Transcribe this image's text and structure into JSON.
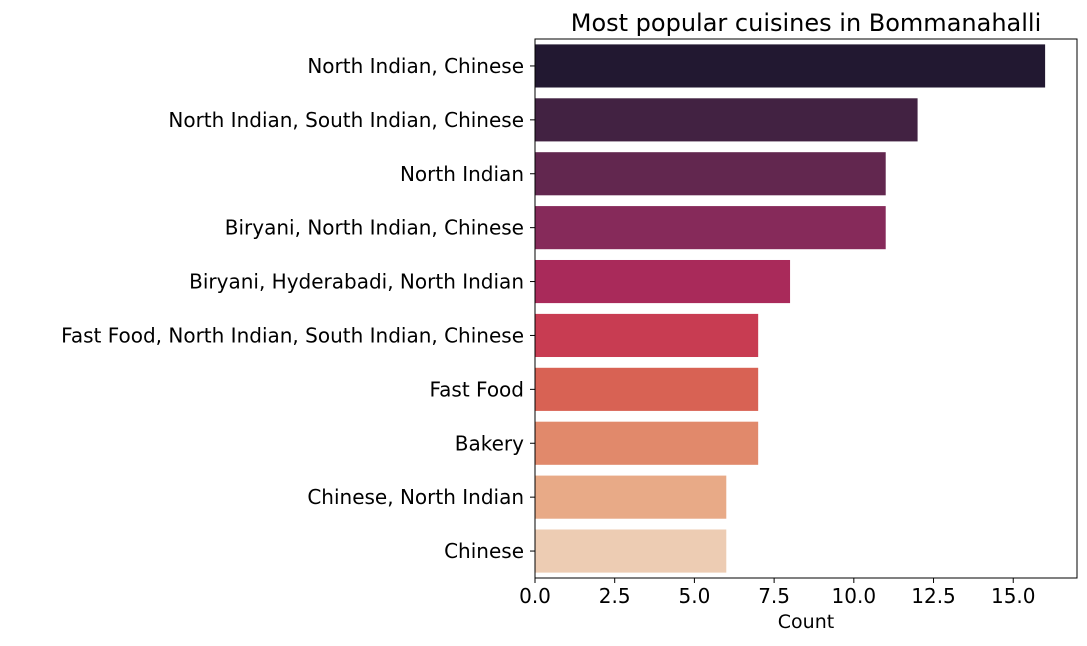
{
  "chart_data": {
    "type": "bar",
    "orientation": "horizontal",
    "title": "Most popular cuisines in Bommanahalli",
    "xlabel": "Count",
    "ylabel": "",
    "xlim": [
      0,
      17
    ],
    "xticks": [
      0,
      2.5,
      5,
      7.5,
      10,
      12.5,
      15
    ],
    "xtick_labels": [
      "0.0",
      "2.5",
      "5.0",
      "7.5",
      "10.0",
      "12.5",
      "15.0"
    ],
    "grid": false,
    "categories": [
      "North Indian, Chinese",
      "North Indian, South Indian, Chinese",
      "North Indian",
      "Biryani, North Indian, Chinese",
      "Biryani, Hyderabadi, North Indian",
      "Fast Food, North Indian, South Indian, Chinese",
      "Fast Food",
      "Bakery",
      "Chinese, North Indian",
      "Chinese"
    ],
    "values": [
      16,
      12,
      11,
      11,
      8,
      7,
      7,
      7,
      6,
      6
    ],
    "colors": [
      "#221831",
      "#422242",
      "#62274f",
      "#862a5a",
      "#a92a5a",
      "#c83c52",
      "#d86254",
      "#e1896b",
      "#e8aa87",
      "#edccb3"
    ]
  }
}
